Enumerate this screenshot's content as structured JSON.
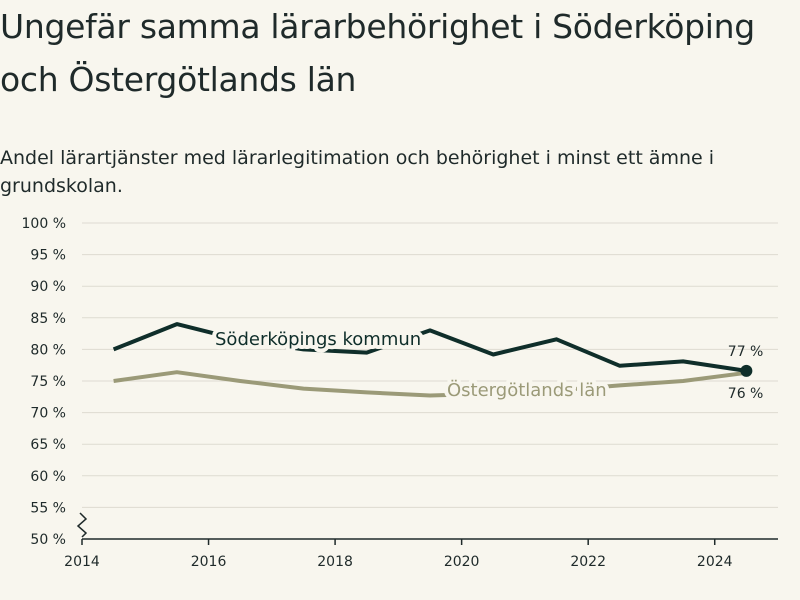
{
  "chart_data": {
    "type": "line",
    "title": "Ungefär samma lärarbehörighet i Söderköping och Östergötlands län",
    "subtitle": "Andel lärartjänster med lärarlegitimation och behörighet i minst ett ämne i grundskolan.",
    "x": [
      2014.5,
      2015.5,
      2016.5,
      2017.5,
      2018.5,
      2019.5,
      2020.5,
      2021.5,
      2022.5,
      2023.5,
      2024.5
    ],
    "series": [
      {
        "name": "Söderköpings kommun",
        "color": "#0f2e2a",
        "values": [
          80,
          84,
          81.5,
          80,
          79.5,
          83,
          79.2,
          81.6,
          77.4,
          78.1,
          76.6
        ],
        "end_label": "77 %"
      },
      {
        "name": "Östergötlands län",
        "color": "#9b9a78",
        "values": [
          75,
          76.4,
          75,
          73.8,
          73.2,
          72.7,
          73,
          73.5,
          74.3,
          75,
          76.3
        ],
        "end_label": "76 %"
      }
    ],
    "xlim": [
      2014,
      2025
    ],
    "ylim": [
      50,
      100
    ],
    "x_ticks": [
      2014,
      2016,
      2018,
      2020,
      2022,
      2024
    ],
    "x_tick_labels": [
      "2014",
      "2016",
      "2018",
      "2020",
      "2022",
      "2024"
    ],
    "y_ticks": [
      50,
      55,
      60,
      65,
      70,
      75,
      80,
      85,
      90,
      95,
      100
    ],
    "y_tick_labels": [
      "50 %",
      "55 %",
      "60 %",
      "65 %",
      "70 %",
      "75 %",
      "80 %",
      "85 %",
      "90 %",
      "95 %",
      "100 %"
    ],
    "grid": true,
    "legend": "inline labels on the lines",
    "axis_break": true,
    "colors": {
      "background": "#f8f6ee",
      "grid": "#dedbd1",
      "axis": "#1f2a2a"
    }
  }
}
